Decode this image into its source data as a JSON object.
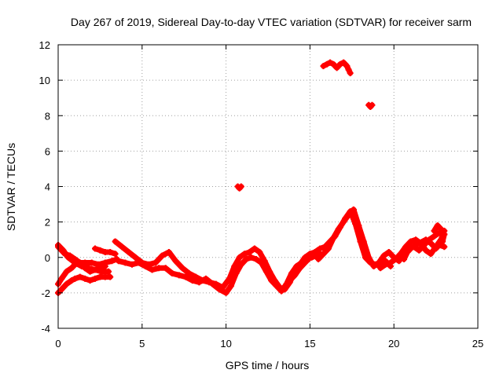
{
  "chart_data": {
    "type": "scatter",
    "title": "Day 267 of 2019, Sidereal Day-to-day VTEC variation (SDTVAR) for receiver sarm",
    "xlabel": "GPS time / hours",
    "ylabel": "SDTVAR / TECUs",
    "xlim": [
      0,
      25
    ],
    "ylim": [
      -4,
      12
    ],
    "xticks": [
      0,
      5,
      10,
      15,
      20,
      25
    ],
    "yticks": [
      -4,
      -2,
      0,
      2,
      4,
      6,
      8,
      10,
      12
    ],
    "grid": true,
    "marker_color": "#ff0000",
    "series": [
      {
        "name": "track-a",
        "x": [
          0.0,
          0.2,
          0.5,
          0.8,
          1.0,
          1.3,
          1.6,
          2.0,
          2.4,
          2.8,
          3.2,
          3.5
        ],
        "y": [
          -1.5,
          -1.2,
          -0.8,
          -0.6,
          -0.4,
          -0.3,
          -0.3,
          -0.3,
          -0.4,
          -0.3,
          -0.2,
          -0.1
        ]
      },
      {
        "name": "track-b",
        "x": [
          0.0,
          0.2,
          0.5,
          0.8,
          1.0,
          1.3,
          1.6,
          1.9,
          2.2,
          2.5,
          2.8,
          3.1
        ],
        "y": [
          -2.0,
          -1.8,
          -1.5,
          -1.3,
          -1.2,
          -1.1,
          -1.2,
          -1.3,
          -1.2,
          -1.1,
          -1.1,
          -1.1
        ]
      },
      {
        "name": "track-c",
        "x": [
          0.0,
          0.2,
          0.4,
          0.7,
          1.0,
          1.3,
          1.6,
          1.9,
          2.2,
          2.5,
          2.8
        ],
        "y": [
          0.6,
          0.4,
          0.2,
          0.1,
          -0.1,
          -0.3,
          -0.6,
          -0.8,
          -0.7,
          -0.6,
          -0.5
        ]
      },
      {
        "name": "track-d",
        "x": [
          0.0,
          0.3,
          0.6,
          1.0,
          1.4,
          1.8,
          2.2,
          2.6,
          3.0
        ],
        "y": [
          0.7,
          0.4,
          0.0,
          -0.3,
          -0.5,
          -0.6,
          -0.7,
          -0.8,
          -0.8
        ]
      },
      {
        "name": "track-e",
        "x": [
          2.2,
          2.5,
          2.8,
          3.1,
          3.4
        ],
        "y": [
          0.5,
          0.4,
          0.3,
          0.3,
          0.2
        ]
      },
      {
        "name": "track-f",
        "x": [
          3.4,
          3.8,
          4.2,
          4.6,
          5.0,
          5.4,
          5.8,
          6.2,
          6.6,
          7.0,
          7.4,
          7.8,
          8.2,
          8.6,
          9.0,
          9.4,
          9.8,
          10.2,
          10.5,
          10.8,
          11.1,
          11.4,
          11.7,
          12.0,
          12.3,
          12.6,
          12.9,
          13.2,
          13.5,
          13.8,
          14.1,
          14.4,
          14.7,
          15.0,
          15.3,
          15.6
        ],
        "y": [
          0.9,
          0.6,
          0.3,
          0.0,
          -0.3,
          -0.4,
          -0.3,
          0.1,
          0.3,
          -0.2,
          -0.6,
          -0.9,
          -1.1,
          -1.3,
          -1.4,
          -1.5,
          -1.7,
          -1.2,
          -0.5,
          0.0,
          0.2,
          0.3,
          0.5,
          0.3,
          -0.2,
          -0.8,
          -1.3,
          -1.7,
          -1.8,
          -1.4,
          -0.8,
          -0.4,
          0.0,
          0.2,
          0.3,
          0.2
        ]
      },
      {
        "name": "track-g",
        "x": [
          3.6,
          4.0,
          4.4,
          4.8,
          5.2,
          5.6,
          6.0,
          6.4,
          6.8,
          7.2,
          7.6,
          8.0,
          8.4,
          8.8,
          9.2,
          9.6,
          10.0,
          10.3,
          10.6,
          10.9,
          11.2,
          11.5,
          11.8,
          12.1,
          12.4,
          12.7,
          13.0,
          13.3,
          13.6,
          13.9,
          14.2,
          14.5,
          14.8,
          15.1,
          15.4
        ],
        "y": [
          -0.2,
          -0.3,
          -0.4,
          -0.3,
          -0.5,
          -0.7,
          -0.6,
          -0.6,
          -0.9,
          -1.0,
          -1.1,
          -1.3,
          -1.4,
          -1.2,
          -1.5,
          -1.8,
          -2.0,
          -1.6,
          -0.9,
          -0.4,
          -0.1,
          0.0,
          -0.1,
          -0.3,
          -0.8,
          -1.3,
          -1.6,
          -1.9,
          -1.5,
          -0.9,
          -0.5,
          -0.3,
          -0.1,
          0.0,
          0.1
        ]
      },
      {
        "name": "track-h",
        "x": [
          13.8,
          14.1,
          14.4,
          14.7,
          15.0,
          15.3,
          15.6,
          15.9,
          16.2,
          16.5,
          16.8,
          17.1,
          17.4,
          17.7,
          18.0,
          18.3,
          18.6,
          18.9,
          19.2,
          19.5,
          19.8
        ],
        "y": [
          -1.3,
          -1.0,
          -0.6,
          -0.3,
          0.0,
          0.3,
          0.5,
          0.6,
          0.9,
          1.2,
          1.7,
          2.2,
          2.6,
          1.9,
          0.9,
          0.0,
          -0.3,
          -0.4,
          -0.5,
          -0.2,
          -0.5
        ]
      },
      {
        "name": "track-i",
        "x": [
          15.5,
          15.8,
          16.1,
          16.4,
          16.7,
          17.0,
          17.3,
          17.6,
          17.9,
          18.2,
          18.5,
          18.8,
          19.1,
          19.4,
          19.7,
          20.0,
          20.3,
          20.6,
          20.9,
          21.2,
          21.5,
          21.8,
          22.1,
          22.4,
          22.7,
          23.0
        ],
        "y": [
          -0.1,
          0.2,
          0.5,
          1.1,
          1.6,
          2.0,
          2.4,
          2.7,
          1.8,
          0.9,
          0.0,
          -0.5,
          -0.3,
          0.1,
          0.3,
          0.0,
          -0.2,
          0.3,
          0.5,
          0.6,
          0.4,
          0.7,
          1.0,
          1.2,
          1.4,
          1.3
        ]
      },
      {
        "name": "track-j",
        "x": [
          19.2,
          19.5,
          19.8,
          20.1,
          20.4,
          20.7,
          21.0,
          21.3,
          21.6,
          21.9,
          22.2,
          22.5,
          22.8,
          23.0
        ],
        "y": [
          -0.6,
          -0.4,
          -0.3,
          -0.1,
          0.2,
          0.6,
          0.9,
          1.0,
          0.8,
          0.4,
          0.2,
          0.6,
          1.0,
          1.5
        ]
      },
      {
        "name": "track-k",
        "x": [
          20.4,
          20.6,
          20.8,
          21.1,
          21.5,
          21.9,
          22.2,
          22.5,
          22.7,
          23.0
        ],
        "y": [
          0.0,
          -0.1,
          0.3,
          0.6,
          0.8,
          1.0,
          0.8,
          0.5,
          0.7,
          0.6
        ]
      },
      {
        "name": "track-l",
        "x": [
          22.4,
          22.6,
          22.8,
          23.0,
          22.9,
          22.7
        ],
        "y": [
          1.5,
          1.8,
          1.6,
          1.3,
          0.9,
          0.7
        ]
      },
      {
        "name": "track-m",
        "x": [
          15.8,
          16.0,
          16.2,
          16.4,
          16.6,
          16.8,
          17.0,
          17.2,
          17.3,
          17.4
        ],
        "y": [
          10.8,
          10.9,
          11.0,
          10.9,
          10.7,
          10.9,
          11.0,
          10.8,
          10.6,
          10.4
        ]
      },
      {
        "name": "track-n",
        "x": [
          18.5,
          18.6,
          18.7
        ],
        "y": [
          8.6,
          8.5,
          8.6
        ]
      },
      {
        "name": "track-o",
        "x": [
          10.7,
          10.8,
          10.9
        ],
        "y": [
          4.0,
          3.9,
          4.0
        ]
      }
    ]
  }
}
